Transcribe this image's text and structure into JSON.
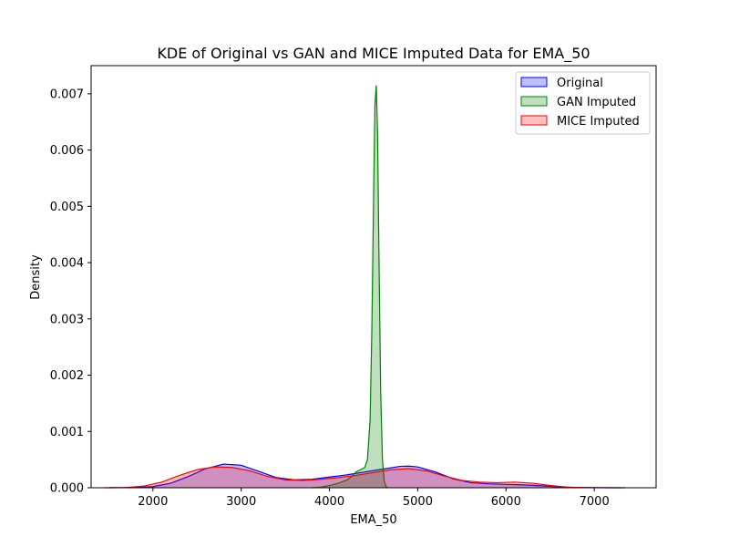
{
  "chart_data": {
    "type": "area",
    "title": "KDE of Original vs GAN and MICE Imputed Data for EMA_50",
    "xlabel": "EMA_50",
    "ylabel": "Density",
    "xlim": [
      1300,
      7700
    ],
    "ylim": [
      0,
      0.0075
    ],
    "xticks": [
      2000,
      3000,
      4000,
      5000,
      6000,
      7000
    ],
    "xtick_labels": [
      "2000",
      "3000",
      "4000",
      "5000",
      "6000",
      "7000"
    ],
    "yticks": [
      0,
      0.001,
      0.002,
      0.003,
      0.004,
      0.005,
      0.006,
      0.007
    ],
    "ytick_labels": [
      "0.000",
      "0.001",
      "0.002",
      "0.003",
      "0.004",
      "0.005",
      "0.006",
      "0.007"
    ],
    "grid": false,
    "legend_position": "top-right",
    "series": [
      {
        "name": "Original",
        "color": "#0000ff",
        "fill": "#0000ff",
        "x": [
          1500,
          1800,
          2000,
          2200,
          2400,
          2600,
          2800,
          3000,
          3200,
          3400,
          3600,
          3800,
          4000,
          4200,
          4400,
          4600,
          4800,
          4900,
          5000,
          5200,
          5400,
          5600,
          5800,
          6000,
          6200,
          6400,
          6600,
          6800,
          7000,
          7200,
          7350
        ],
        "y": [
          0,
          5e-06,
          2e-05,
          8e-05,
          0.0002,
          0.00034,
          0.00042,
          0.0004,
          0.00029,
          0.00018,
          0.00014,
          0.00015,
          0.00019,
          0.00023,
          0.00028,
          0.00033,
          0.00038,
          0.000385,
          0.00037,
          0.00028,
          0.00016,
          9e-05,
          7e-05,
          6e-05,
          5e-05,
          3.5e-05,
          1.5e-05,
          5e-06,
          2e-06,
          0,
          0
        ]
      },
      {
        "name": "GAN Imputed",
        "color": "#008000",
        "fill": "#008000",
        "x": [
          3800,
          3900,
          4000,
          4100,
          4200,
          4250,
          4300,
          4350,
          4400,
          4430,
          4460,
          4480,
          4500,
          4515,
          4530,
          4545,
          4560,
          4580,
          4600,
          4620,
          4640,
          4660
        ],
        "y": [
          0,
          1e-05,
          4e-05,
          8e-05,
          0.00014,
          0.0002,
          0.00028,
          0.00032,
          0.00036,
          0.0005,
          0.0012,
          0.0028,
          0.0052,
          0.0068,
          0.00715,
          0.0063,
          0.0042,
          0.0017,
          0.0005,
          0.00012,
          2e-05,
          0
        ]
      },
      {
        "name": "MICE Imputed",
        "color": "#ff0000",
        "fill": "#ff0000",
        "x": [
          1450,
          1700,
          1900,
          2100,
          2300,
          2500,
          2700,
          2900,
          3100,
          3300,
          3500,
          3700,
          3900,
          4100,
          4300,
          4500,
          4700,
          4900,
          5100,
          5300,
          5500,
          5700,
          5900,
          6100,
          6300,
          6500,
          6700,
          6900,
          7100,
          7300
        ],
        "y": [
          0,
          5e-06,
          3e-05,
          0.0001,
          0.00022,
          0.00032,
          0.00037,
          0.00036,
          0.0003,
          0.0002,
          0.00014,
          0.00013,
          0.00015,
          0.00018,
          0.00022,
          0.00027,
          0.00032,
          0.00034,
          0.0003,
          0.00021,
          0.00013,
          0.0001,
          9e-05,
          0.0001,
          8e-05,
          4e-05,
          1e-05,
          3e-06,
          1e-06,
          0
        ]
      }
    ]
  }
}
